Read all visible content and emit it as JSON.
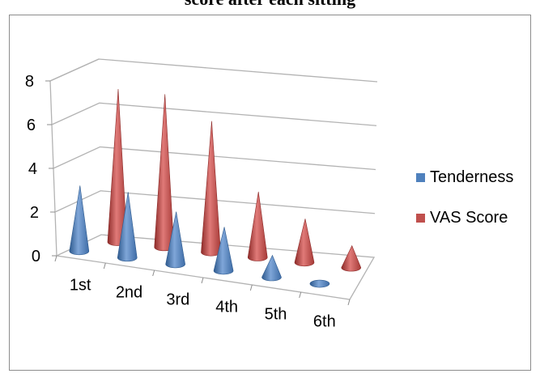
{
  "chart_data": {
    "type": "bar",
    "title": "score after each sitting",
    "categories": [
      "1st",
      "2nd",
      "3rd",
      "4th",
      "5th",
      "6th"
    ],
    "series": [
      {
        "name": "Tenderness",
        "values": [
          3,
          3,
          2.4,
          2,
          1,
          0
        ],
        "color": "#4F81BD"
      },
      {
        "name": "VAS Score",
        "values": [
          7,
          7,
          6,
          3,
          2,
          1
        ],
        "color": "#C0504D"
      }
    ],
    "yticks": [
      "0",
      "2",
      "4",
      "6",
      "8"
    ],
    "ylim": [
      0,
      8
    ],
    "grid": true,
    "legend_position": "right",
    "shape": "cone",
    "xlabel": "",
    "ylabel": ""
  }
}
